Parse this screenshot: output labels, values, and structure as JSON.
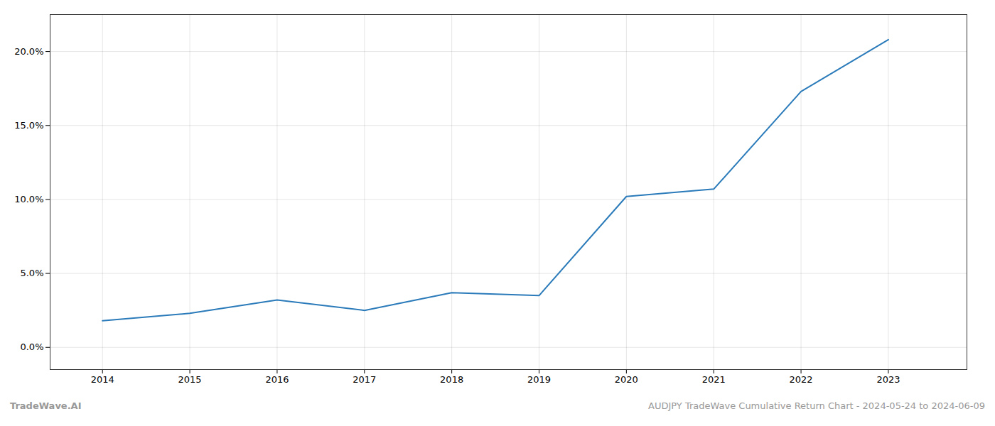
{
  "chart_data": {
    "type": "line",
    "x": [
      2014,
      2015,
      2016,
      2017,
      2018,
      2019,
      2020,
      2021,
      2022,
      2023
    ],
    "values": [
      1.8,
      2.3,
      3.2,
      2.5,
      3.7,
      3.5,
      10.2,
      10.7,
      17.3,
      20.8
    ],
    "color": "#2b7bba",
    "xlim": [
      2013.4,
      2023.9
    ],
    "xticks": [
      2014,
      2015,
      2016,
      2017,
      2018,
      2019,
      2020,
      2021,
      2022,
      2023
    ],
    "ylim": [
      -1.5,
      22.5
    ],
    "yticks": [
      {
        "value": 0.0,
        "label": "0.0%"
      },
      {
        "value": 5.0,
        "label": "5.0%"
      },
      {
        "value": 10.0,
        "label": "10.0%"
      },
      {
        "value": 15.0,
        "label": "15.0%"
      },
      {
        "value": 20.0,
        "label": "20.0%"
      }
    ],
    "grid": true,
    "annotations": [
      "TradeWave.AI",
      "AUDJPY TradeWave Cumulative Return Chart - 2024-05-24 to 2024-06-09"
    ]
  }
}
